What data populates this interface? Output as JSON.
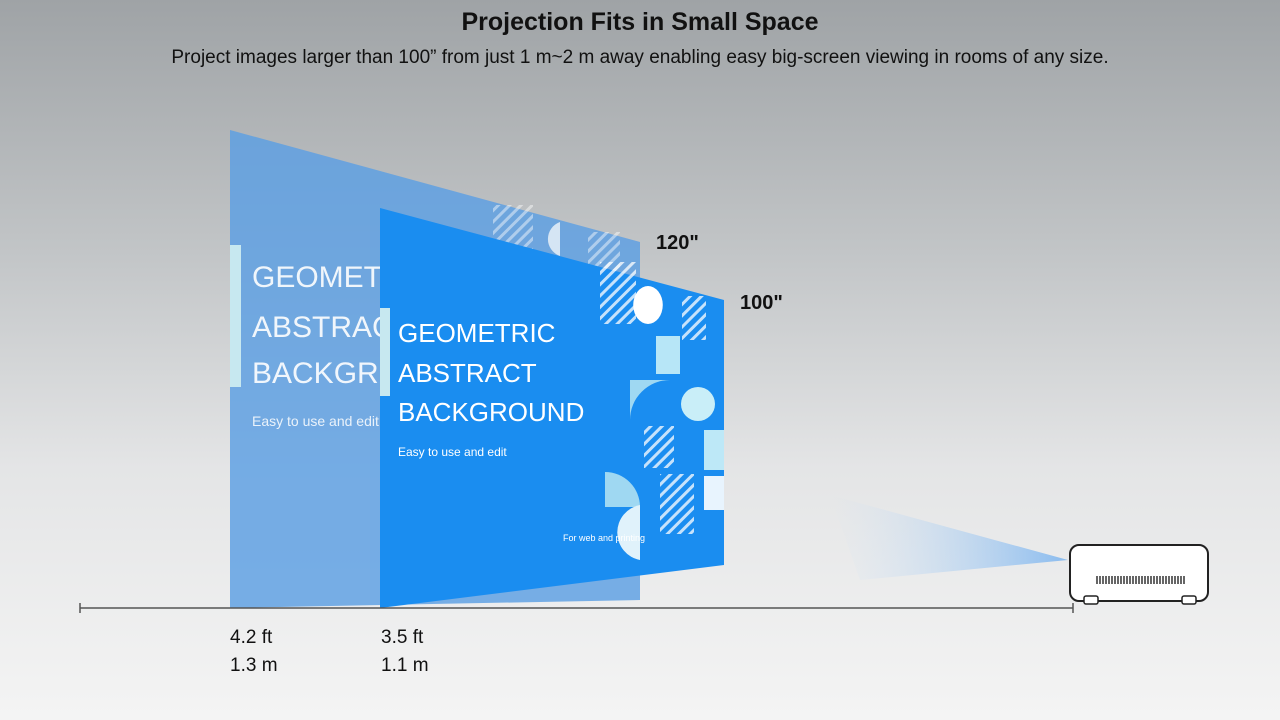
{
  "header": {
    "title": "Projection Fits in Small Space",
    "subtitle": "Project images larger than 100” from just 1 m~2 m away enabling easy big-screen viewing in rooms of any size."
  },
  "screens": {
    "large": {
      "size_label": "120\"",
      "lines": [
        "GEOMETRIC",
        "ABSTRACT",
        "BACKGROUN"
      ],
      "tagline": "Easy to use and edit",
      "distance_ft": "4.2 ft",
      "distance_m": "1.3 m"
    },
    "small": {
      "size_label": "100\"",
      "lines": [
        "GEOMETRIC",
        "ABSTRACT",
        "BACKGROUND"
      ],
      "tagline": "Easy to use and edit",
      "footer": "For web and printing",
      "distance_ft": "3.5 ft",
      "distance_m": "1.1 m"
    }
  },
  "colors": {
    "large_screen": "#5b9fe3",
    "small_screen": "#1a8df0",
    "beam": "#9ec9f5",
    "axis": "#555555"
  },
  "icons": {
    "projector": "projector-icon"
  }
}
